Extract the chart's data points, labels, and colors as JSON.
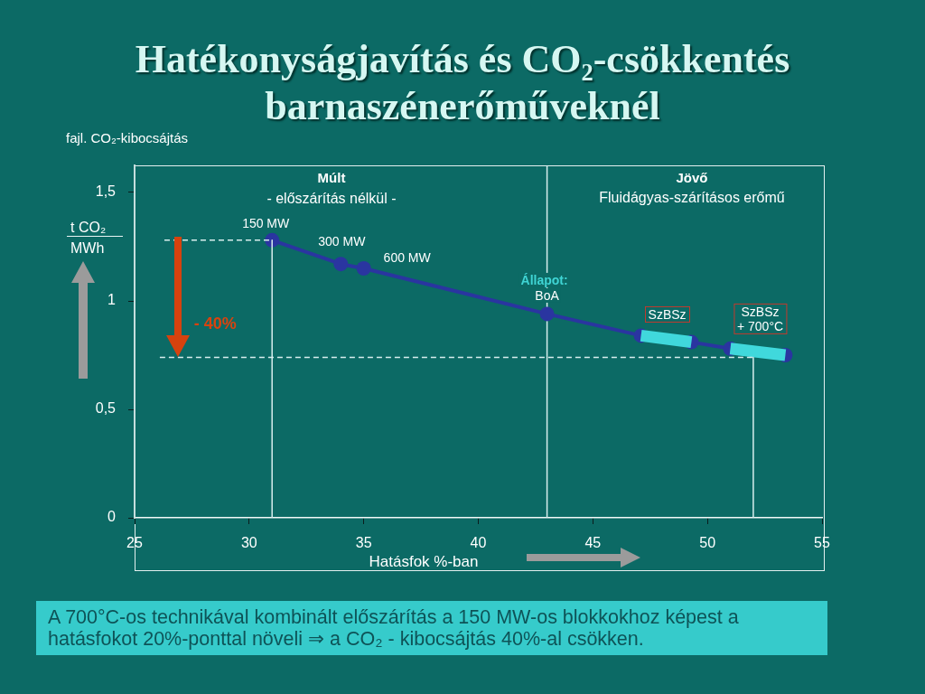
{
  "chart_data": {
    "type": "line",
    "title": "Hatékonyságjavítás és CO₂-csökkentés barnaszénerőműveknél",
    "xlabel": "Hatásfok %-ban",
    "ylabel": "fajl. CO₂-kibocsájtás",
    "xlim": [
      25,
      55
    ],
    "xticks": [
      25,
      30,
      35,
      40,
      45,
      50,
      55
    ],
    "ylim": [
      0,
      1.625
    ],
    "yticks": [
      0,
      {
        "value": 0.5,
        "label": "0,5"
      },
      1,
      {
        "value": 1.5,
        "label": "1,5"
      }
    ],
    "series": [
      {
        "type": "line",
        "color": "#2a35a0",
        "marker": "circle",
        "x": [
          31,
          34,
          35,
          43,
          47.1,
          49.3,
          51,
          53.4
        ],
        "values": [
          1.28,
          1.17,
          1.15,
          0.94,
          0.84,
          0.81,
          0.78,
          0.75
        ]
      },
      {
        "type": "line",
        "color": "#40d8dc",
        "marker": "none",
        "x": [
          47.1,
          49.3
        ],
        "values": [
          0.84,
          0.81
        ]
      },
      {
        "type": "line",
        "color": "#40d8dc",
        "marker": "none",
        "x": [
          51,
          53.4
        ],
        "values": [
          0.78,
          0.75
        ]
      },
      {
        "type": "line",
        "color": "#d8eeee",
        "marker": "none",
        "line_style": "dashed",
        "x": [
          26.3,
          31
        ],
        "values": [
          1.28,
          1.28
        ]
      },
      {
        "type": "line",
        "color": "#d8eeee",
        "marker": "none",
        "x": [
          31,
          31
        ],
        "values": [
          1.28,
          0
        ]
      },
      {
        "type": "line",
        "color": "#d8eeee",
        "marker": "none",
        "line_style": "dashed",
        "x": [
          26.1,
          52
        ],
        "values": [
          0.74,
          0.74
        ]
      },
      {
        "type": "line",
        "color": "#d8eeee",
        "marker": "none",
        "x": [
          52,
          52
        ],
        "values": [
          0.74,
          0
        ]
      }
    ],
    "ref_lines": [
      {
        "axis": "x",
        "value": 43,
        "color": "#d8eeee"
      }
    ],
    "annotations": [
      {
        "text": "150 MW",
        "x": 31,
        "y": 1.28
      },
      {
        "text": "300 MW",
        "x": 34,
        "y": 1.17
      },
      {
        "text": "600 MW",
        "x": 35,
        "y": 1.15
      },
      {
        "text": "Állapot:",
        "x": 43,
        "y": 0.94
      },
      {
        "text": "BoA",
        "x": 43,
        "y": 0.94
      },
      {
        "text": "SzBSz",
        "x": 47.1,
        "y": 0.84
      },
      {
        "text": "SzBSz\n+ 700°C",
        "x": 51,
        "y": 0.78
      },
      "Múlt",
      "- előszárítás nélkül -",
      "Jövő",
      "Fluidágyas-szárításos erőmű",
      {
        "text": "- 40%",
        "x": 26.9,
        "y": 0.74
      },
      "t CO₂",
      "MWh",
      "A 700°C-os technikával kombinált előszárítás a 150 MW-os blokkokhoz képest a hatásfokot 20%-ponttal növeli ⇒ a CO₂ - kibocsájtás 40%-al csökken."
    ]
  }
}
